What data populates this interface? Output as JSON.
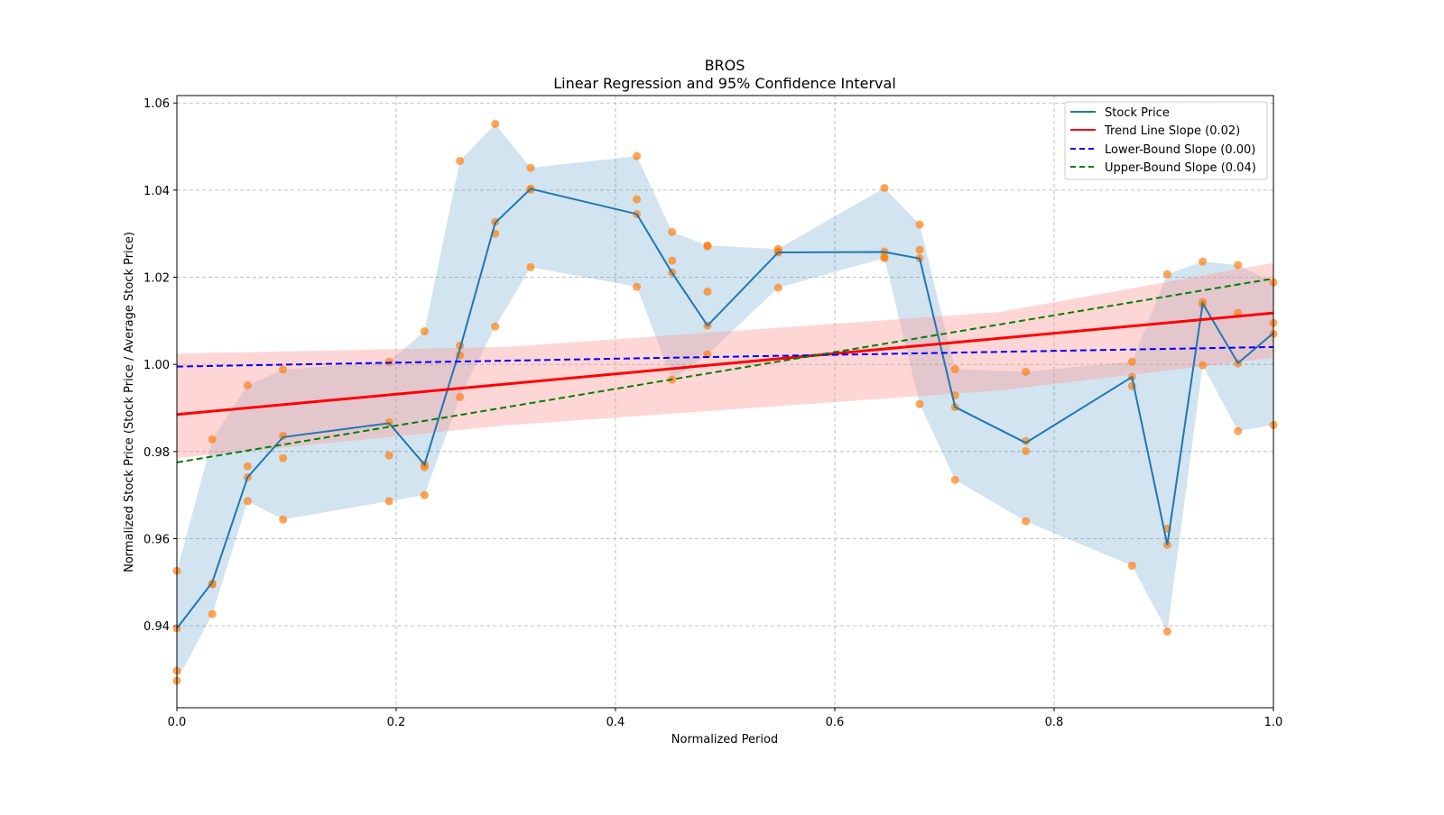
{
  "chart_data": {
    "type": "line",
    "title": "BROS",
    "subtitle": "Linear Regression and 95% Confidence Interval",
    "xlabel": "Normalized Period",
    "ylabel": "Normalized Stock Price (Stock Price / Average Stock Price)",
    "xlim": [
      0,
      1
    ],
    "ylim": [
      0.9212,
      1.0617
    ],
    "xticks": [
      0,
      0.2,
      0.4,
      0.6,
      0.8,
      1.0
    ],
    "xtick_labels": [
      "0.0",
      "0.2",
      "0.4",
      "0.6",
      "0.8",
      "1.0"
    ],
    "yticks": [
      0.94,
      0.96,
      0.98,
      1.0,
      1.02,
      1.04,
      1.06
    ],
    "ytick_labels": [
      "0.94",
      "0.96",
      "0.98",
      "1.00",
      "1.02",
      "1.04",
      "1.06"
    ],
    "grid": true,
    "legend_position": "top-right",
    "legend": [
      {
        "label": "Stock Price",
        "color": "#1f77b4",
        "style": "solid"
      },
      {
        "label": "Trend Line Slope (0.02)",
        "color": "#ff0000",
        "style": "solid"
      },
      {
        "label": "Lower-Bound Slope (0.00)",
        "color": "#0000ff",
        "style": "dashed"
      },
      {
        "label": "Upper-Bound Slope (0.04)",
        "color": "#008000",
        "style": "dashed"
      }
    ],
    "x": [
      0,
      0.0323,
      0.0645,
      0.0968,
      0.1935,
      0.2258,
      0.2581,
      0.2903,
      0.3226,
      0.4194,
      0.4516,
      0.4839,
      0.5484,
      0.6452,
      0.6774,
      0.7097,
      0.7742,
      0.871,
      0.9032,
      0.9355,
      0.9677,
      1.0
    ],
    "stock_price": [
      0.9394,
      0.95,
      0.9741,
      0.9833,
      0.9865,
      0.977,
      1.0035,
      1.0325,
      1.0403,
      1.0345,
      1.021,
      1.0089,
      1.0257,
      1.0258,
      1.0243,
      0.9902,
      0.982,
      0.9971,
      0.9586,
      1.014,
      1.0003,
      1.0072
    ],
    "scatter": [
      [
        0.9526,
        0.9394,
        0.9297,
        0.9274
      ],
      [
        0.9828,
        0.9497,
        0.9495,
        0.9427
      ],
      [
        0.9952,
        0.9766,
        0.9741,
        0.9686
      ],
      [
        0.9988,
        0.9836,
        0.9785,
        0.9644
      ],
      [
        1.0006,
        0.9867,
        0.9791,
        0.9686
      ],
      [
        1.0076,
        0.977,
        0.9764,
        0.97
      ],
      [
        1.0467,
        1.0043,
        1.0021,
        0.9925
      ],
      [
        1.0552,
        1.0327,
        1.03,
        1.0087
      ],
      [
        1.0451,
        1.0403,
        1.0401,
        1.0223
      ],
      [
        1.0478,
        1.0379,
        1.0345,
        1.0178
      ],
      [
        1.0304,
        1.0238,
        1.0211,
        0.9965
      ],
      [
        1.0273,
        1.0271,
        1.0167,
        1.0089,
        1.0023
      ],
      [
        1.0265,
        1.0259,
        1.0257,
        1.0176
      ],
      [
        1.0405,
        1.0259,
        1.0246,
        1.0244
      ],
      [
        1.0321,
        1.0263,
        1.0244,
        0.9909
      ],
      [
        0.9989,
        0.9929,
        0.9902,
        0.9735
      ],
      [
        0.9983,
        0.9824,
        0.9801,
        0.964
      ],
      [
        1.0006,
        0.9971,
        0.995,
        0.9538
      ],
      [
        1.0207,
        0.9623,
        0.9586,
        0.9387
      ],
      [
        1.0236,
        1.0143,
        1.0137,
        0.9998
      ],
      [
        1.0228,
        1.0118,
        1.0002,
        0.9847
      ],
      [
        1.0188,
        1.0095,
        1.007,
        0.9861
      ]
    ],
    "trend_line": {
      "y0": 0.9885,
      "y1": 1.0118
    },
    "trend_ci": {
      "lower": [
        0.9785,
        0.986,
        0.994,
        1.0015
      ],
      "upper": [
        1.0025,
        1.004,
        1.012,
        1.0233
      ],
      "x": [
        0,
        0.3,
        0.75,
        1.0
      ]
    },
    "lower_bound_line": {
      "y0": 0.9995,
      "y1": 1.004
    },
    "upper_bound_line": {
      "y0": 0.9775,
      "y1": 1.0197
    },
    "colors": {
      "price": "#1f77b4",
      "band": "#1f77b4",
      "points": "#ff7f0e",
      "trend": "#ff0000",
      "ci": "#ff9999",
      "lower": "#0000ff",
      "upper": "#008000"
    }
  }
}
